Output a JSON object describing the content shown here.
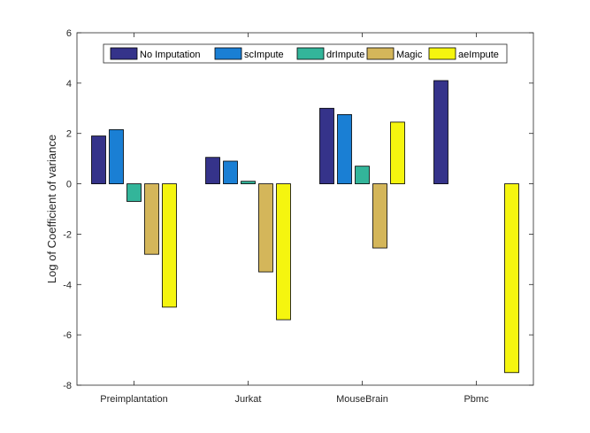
{
  "chart_data": {
    "type": "bar",
    "title": "",
    "xlabel": "",
    "ylabel": "Log of Coefficient of variance",
    "ylim": [
      -8,
      6
    ],
    "yticks": [
      -8,
      -6,
      -4,
      -2,
      0,
      2,
      4,
      6
    ],
    "categories": [
      "Preimplantation",
      "Jurkat",
      "MouseBrain",
      "Pbmc"
    ],
    "series": [
      {
        "name": "No Imputation",
        "color": "#35338a",
        "values": [
          1.9,
          1.05,
          3.0,
          4.1
        ]
      },
      {
        "name": "scImpute",
        "color": "#1a7fd4",
        "values": [
          2.15,
          0.9,
          2.75,
          0
        ]
      },
      {
        "name": "drImpute",
        "color": "#33b59a",
        "values": [
          -0.7,
          0.1,
          0.7,
          0
        ]
      },
      {
        "name": "Magic",
        "color": "#d4b65a",
        "values": [
          -2.8,
          -3.5,
          -2.55,
          0
        ]
      },
      {
        "name": "aeImpute",
        "color": "#f5f50f",
        "values": [
          -4.9,
          -5.4,
          2.45,
          -7.5
        ]
      }
    ],
    "grid": false,
    "legend_position": "top"
  }
}
